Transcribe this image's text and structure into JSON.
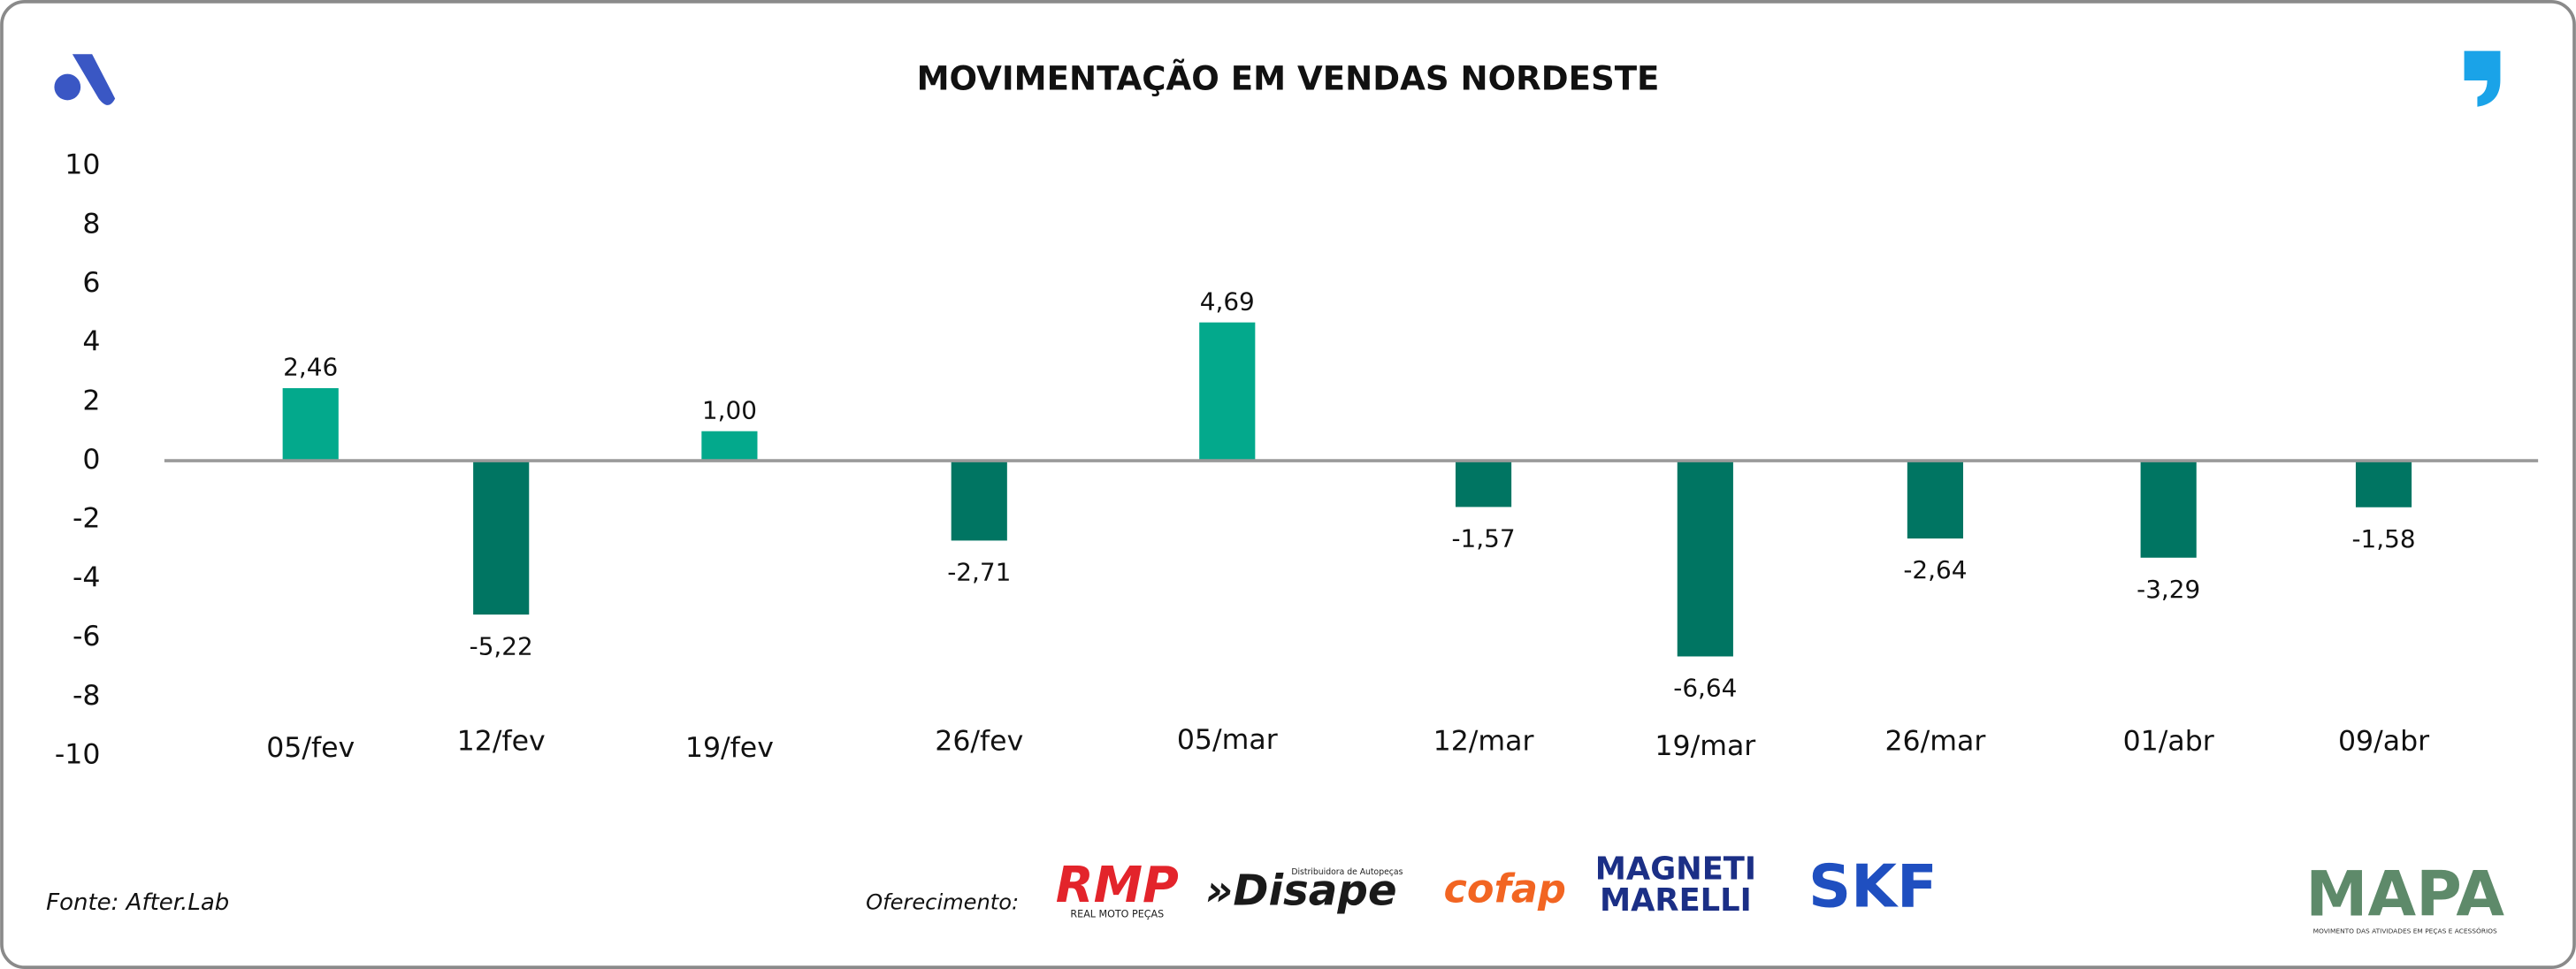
{
  "chart_data": {
    "type": "bar",
    "title": "MOVIMENTAÇÃO EM VENDAS NORDESTE",
    "categories": [
      "05/fev",
      "12/fev",
      "19/fev",
      "26/fev",
      "05/mar",
      "12/mar",
      "19/mar",
      "26/mar",
      "01/abr",
      "09/abr"
    ],
    "values": [
      2.46,
      -5.22,
      1.0,
      -2.71,
      4.69,
      -1.57,
      -6.64,
      -2.64,
      -3.29,
      -1.58
    ],
    "value_labels": [
      "2,46",
      "-5,22",
      "1,00",
      "-2,71",
      "4,69",
      "-1,57",
      "-6,64",
      "-2,64",
      "-3,29",
      "-1,58"
    ],
    "color_positive": "#03a98c",
    "color_negative": "#007562",
    "ylim": [
      -10,
      10
    ],
    "yticks": [
      10,
      8,
      6,
      4,
      2,
      0,
      -2,
      -4,
      -6,
      -8,
      -10
    ]
  },
  "footer": {
    "source": "Fonte: After.Lab",
    "sponsor_label": "Oferecimento:",
    "sponsors": [
      "RMP",
      "REAL MOTO PEÇAS",
      "Distribuidora de Autopeças",
      "»Disape",
      "cofap",
      "MAGNETI",
      "MARELLI",
      "SKF"
    ],
    "brand": "MAPA",
    "brand_tagline": "MOVIMENTO DAS ATIVIDADES EM PEÇAS E ACESSÓRIOS"
  }
}
